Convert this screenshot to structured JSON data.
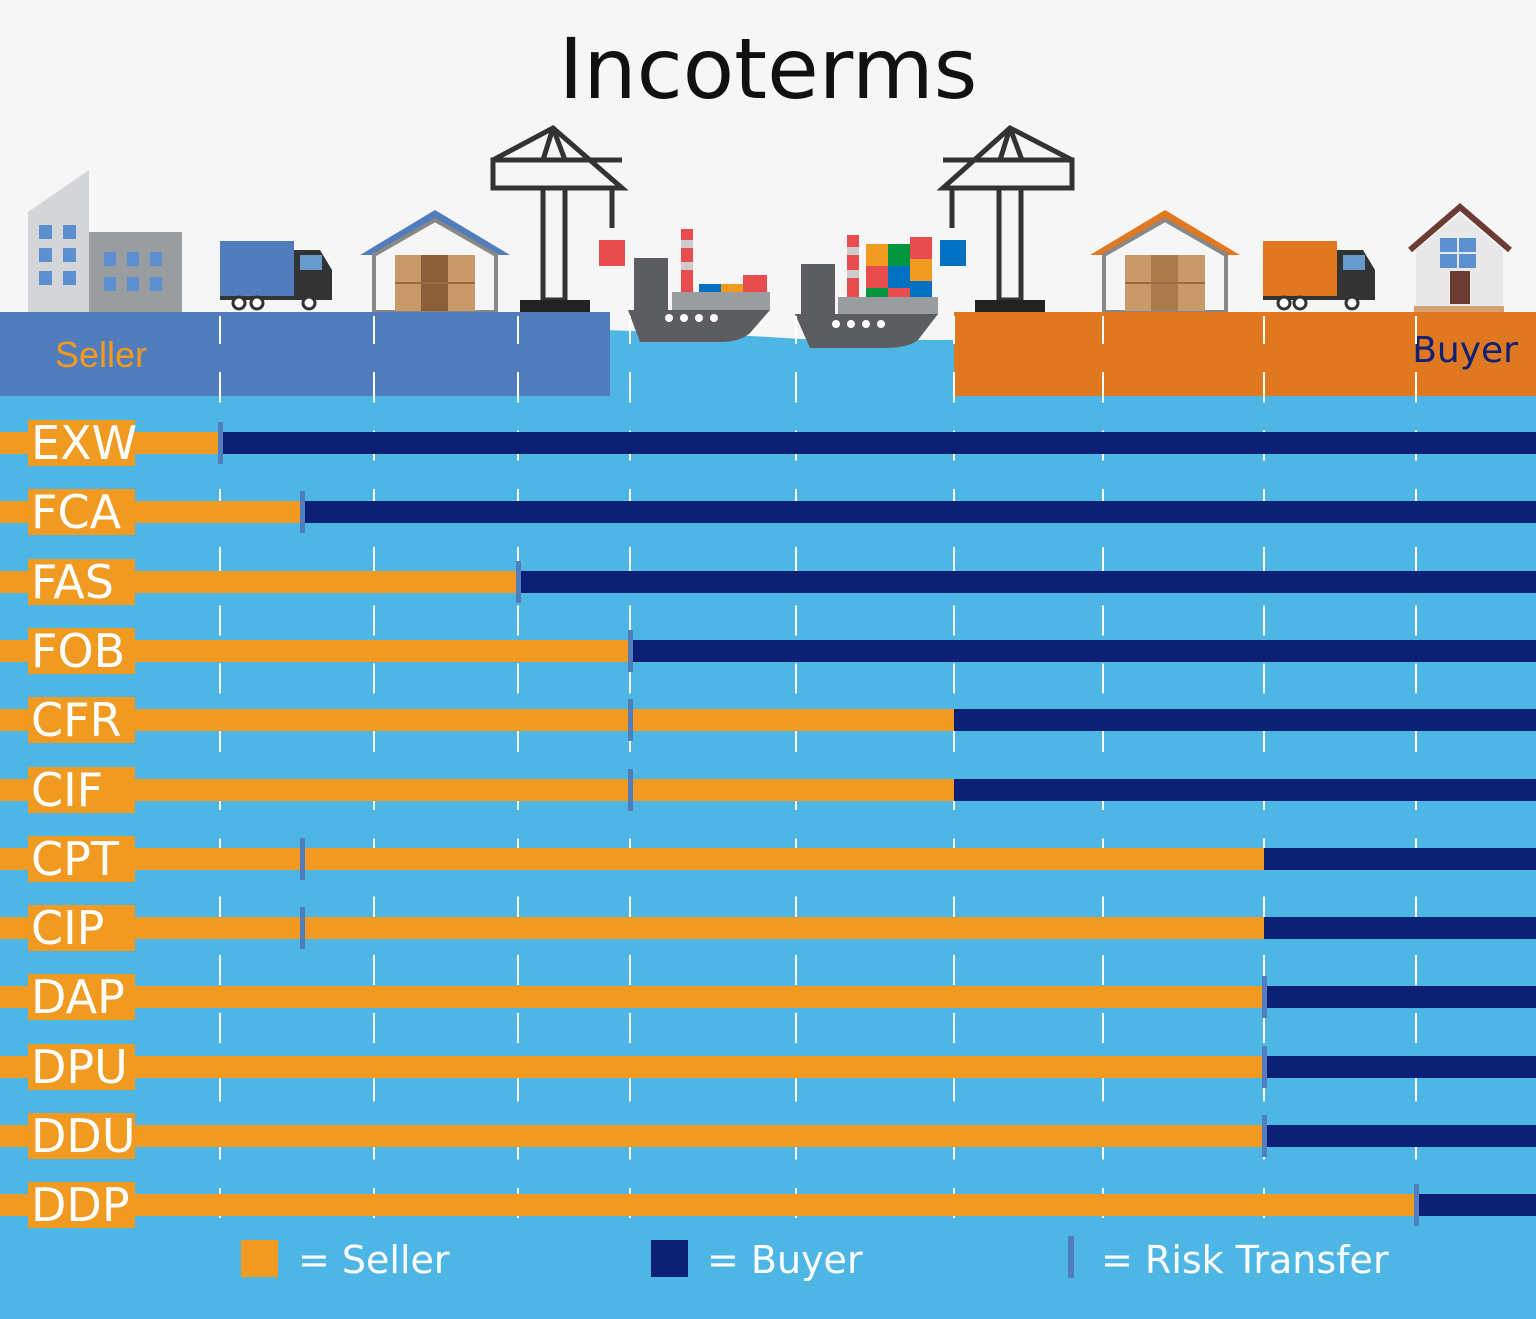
{
  "title": "Incoterms",
  "zones": {
    "seller": "Seller",
    "buyer": "Buyer"
  },
  "colors": {
    "seller": "#f09a22",
    "buyer": "#0c2076",
    "risk": "#527dbc",
    "sea": "#4db6e5",
    "seller_zone": "#527dbc",
    "buyer_zone": "#e07822"
  },
  "stages": [
    "seller-factory",
    "export-truck",
    "export-warehouse",
    "export-port-crane",
    "ship-loading",
    "ship-transit",
    "import-port-crane",
    "import-warehouse",
    "import-truck",
    "buyer-house"
  ],
  "terms": [
    {
      "code": "EXW",
      "seller_until": 1,
      "risk_at": 1
    },
    {
      "code": "FCA",
      "seller_until": 1.5,
      "risk_at": 1.5
    },
    {
      "code": "FAS",
      "seller_until": 3,
      "risk_at": 3
    },
    {
      "code": "FOB",
      "seller_until": 4,
      "risk_at": 4
    },
    {
      "code": "CFR",
      "seller_until": 6,
      "risk_at": 4
    },
    {
      "code": "CIF",
      "seller_until": 6,
      "risk_at": 4
    },
    {
      "code": "CPT",
      "seller_until": 8,
      "risk_at": 1.5
    },
    {
      "code": "CIP",
      "seller_until": 8,
      "risk_at": 1.5
    },
    {
      "code": "DAP",
      "seller_until": 8,
      "risk_at": 8
    },
    {
      "code": "DPU",
      "seller_until": 8,
      "risk_at": 8
    },
    {
      "code": "DDU",
      "seller_until": 8,
      "risk_at": 8
    },
    {
      "code": "DDP",
      "seller_until": 9,
      "risk_at": 9
    }
  ],
  "legend": {
    "seller": "= Seller",
    "buyer": "= Buyer",
    "risk": "= Risk Transfer"
  }
}
